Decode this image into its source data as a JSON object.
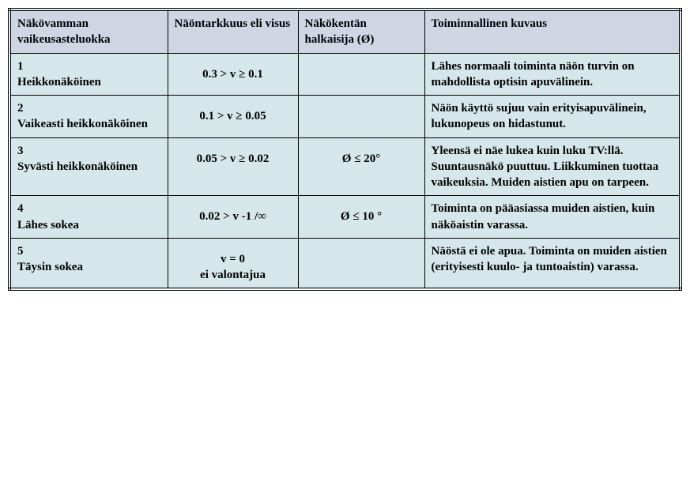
{
  "table": {
    "headers": {
      "h1": "Näkövamman vaikeusasteluokka",
      "h2": "Näöntarkkuus eli visus",
      "h3": "Näkökentän halkaisija (Ø)",
      "h4": "Toiminnallinen kuvaus"
    },
    "rows": [
      {
        "cat": "1\nHeikkonäköinen",
        "visus": "0.3 > v ≥ 0.1",
        "field": "",
        "desc": "Lähes normaali toiminta näön turvin on mahdollista optisin apuvälinein."
      },
      {
        "cat": "2\nVaikeasti heikkonäköinen",
        "visus": "0.1 > v ≥ 0.05",
        "field": "",
        "desc": "Näön käyttö sujuu vain erityisapuvälinein, lukunopeus on hidastunut."
      },
      {
        "cat": "3\nSyvästi heikkonäköinen",
        "visus": "0.05 > v ≥ 0.02",
        "field": "Ø ≤ 20°",
        "desc": "Yleensä ei näe lukea kuin luku TV:llä. Suuntausnäkö puuttuu. Liikkuminen tuottaa vaikeuksia. Muiden aistien apu on tarpeen."
      },
      {
        "cat": "4\nLähes sokea",
        "visus": "0.02 > v -1 /∞",
        "field": "Ø ≤ 10 °",
        "desc": "Toiminta on pääasiassa muiden aistien, kuin näköaistin varassa."
      },
      {
        "cat": "5\nTäysin sokea",
        "visus": "v = 0\nei valontajua",
        "field": "",
        "desc": "Näöstä ei ole apua. Toiminta on muiden aistien (erityisesti kuulo- ja tuntoaistin) varassa."
      }
    ],
    "colors": {
      "header_bg": "#cfd5e3",
      "body_bg": "#d6e7eb",
      "border": "#000000"
    }
  }
}
